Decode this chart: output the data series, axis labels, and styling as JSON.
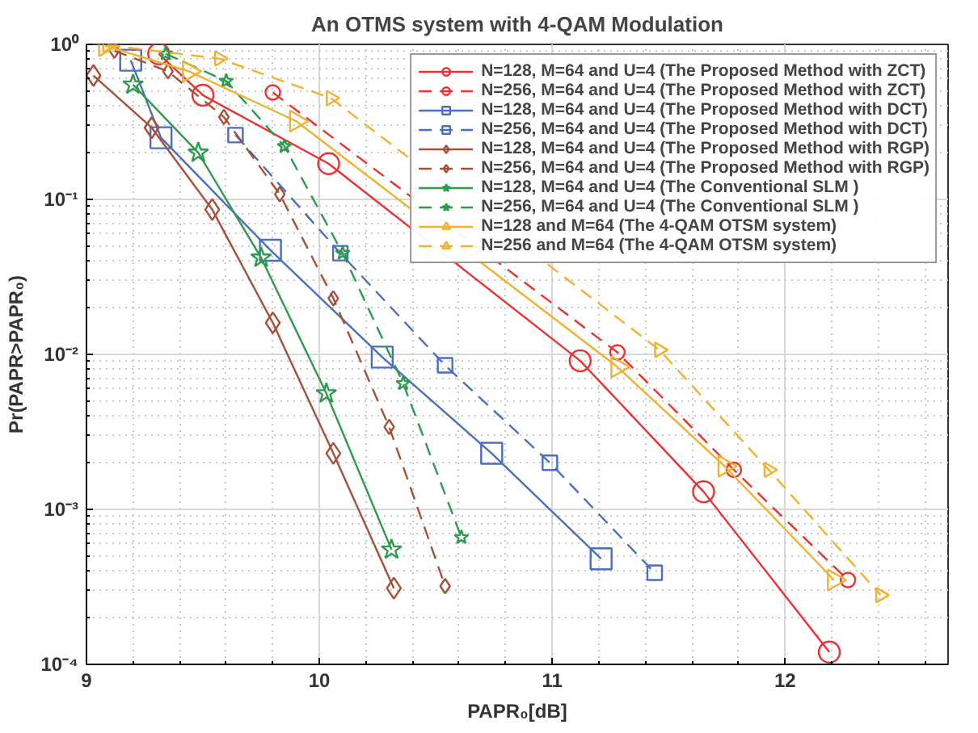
{
  "chart_data": {
    "type": "line",
    "title": "An OTMS system with 4-QAM Modulation",
    "xlabel": "PAPR₀[dB]",
    "ylabel": "Pr(PAPR>PAPR₀)",
    "log": "y",
    "grid": true,
    "legend": "top right",
    "xlim": [
      9,
      12.7
    ],
    "xticks": [
      9,
      10,
      11,
      12
    ],
    "ylim": [
      0.0001,
      1
    ],
    "yticks": [
      {
        "value": 0.0001,
        "label": "10⁻⁴"
      },
      {
        "value": 0.001,
        "label": "10⁻³"
      },
      {
        "value": 0.01,
        "label": "10⁻²"
      },
      {
        "value": 0.1,
        "label": "10⁻¹"
      },
      {
        "value": 1,
        "label": "10⁰"
      }
    ],
    "series": [
      {
        "name": "N=128, M=64 and U=4 (The Proposed Method with ZCT)",
        "color": "#ee3030",
        "marker": "circle",
        "line_style": "solid",
        "x": [
          9.31,
          9.5,
          10.04,
          11.12,
          11.65,
          12.19
        ],
        "values": [
          0.87,
          0.47,
          0.17,
          0.0091,
          0.0013,
          0.00012
        ]
      },
      {
        "name": "N=256, M=64 and U=4 (The Proposed Method with ZCT)",
        "color": "#ee3030",
        "marker": "circle",
        "line_style": "dashed",
        "x": [
          9.8,
          11.28,
          11.78,
          12.27
        ],
        "values": [
          0.49,
          0.0103,
          0.0018,
          0.00035
        ]
      },
      {
        "name": "N=128, M=64 and U=4 (The Proposed Method with DCT)",
        "color": "#4a6fbf",
        "marker": "square",
        "line_style": "solid",
        "x": [
          9.19,
          9.32,
          9.79,
          10.27,
          10.74,
          11.21
        ],
        "values": [
          0.79,
          0.25,
          0.047,
          0.0096,
          0.0023,
          0.00048
        ]
      },
      {
        "name": "N=256, M=64 and U=4 (The Proposed Method with DCT)",
        "color": "#4a6fbf",
        "marker": "square",
        "line_style": "dashed",
        "x": [
          9.64,
          10.09,
          10.54,
          10.99,
          11.44
        ],
        "values": [
          0.26,
          0.045,
          0.0085,
          0.002,
          0.00039
        ]
      },
      {
        "name": "N=128, M=64 and U=4 (The Proposed Method with RGP)",
        "color": "#a65037",
        "marker": "diamond",
        "line_style": "solid",
        "x": [
          9.03,
          9.28,
          9.54,
          9.8,
          10.06,
          10.32
        ],
        "values": [
          0.63,
          0.29,
          0.086,
          0.016,
          0.0023,
          0.00031
        ]
      },
      {
        "name": "N=256, M=64 and U=4 (The Proposed Method with RGP)",
        "color": "#a65037",
        "marker": "diamond",
        "line_style": "dashed",
        "x": [
          9.12,
          9.35,
          9.59,
          9.83,
          10.06,
          10.3,
          10.54
        ],
        "values": [
          0.91,
          0.67,
          0.34,
          0.108,
          0.023,
          0.0034,
          0.00032
        ]
      },
      {
        "name": "N=128, M=64 and U=4 (The Conventional SLM )",
        "color": "#2e9a4e",
        "marker": "star",
        "line_style": "solid",
        "x": [
          9.2,
          9.48,
          9.75,
          10.03,
          10.31
        ],
        "values": [
          0.55,
          0.2,
          0.042,
          0.0056,
          0.00055
        ]
      },
      {
        "name": "N=256, M=64 and U=4 (The Conventional SLM )",
        "color": "#2e9a4e",
        "marker": "star",
        "line_style": "dashed",
        "x": [
          9.34,
          9.6,
          9.85,
          10.1,
          10.36,
          10.61
        ],
        "values": [
          0.87,
          0.58,
          0.22,
          0.045,
          0.0065,
          0.00066
        ]
      },
      {
        "name": "N=128 and M=64 (The 4-QAM OTSM system)",
        "color": "#f2b12c",
        "marker": "triangle",
        "line_style": "solid",
        "x": [
          9.08,
          9.44,
          9.9,
          11.28,
          11.74,
          12.21
        ],
        "values": [
          0.98,
          0.67,
          0.32,
          0.0083,
          0.0019,
          0.00035
        ]
      },
      {
        "name": "N=256 and M=64 (The 4-QAM OTSM system)",
        "color": "#f2b12c",
        "marker": "triangle",
        "line_style": "dashed",
        "x": [
          9.09,
          9.57,
          10.05,
          11.46,
          11.93,
          12.41
        ],
        "values": [
          0.99,
          0.81,
          0.45,
          0.0107,
          0.0018,
          0.00028
        ]
      }
    ]
  }
}
